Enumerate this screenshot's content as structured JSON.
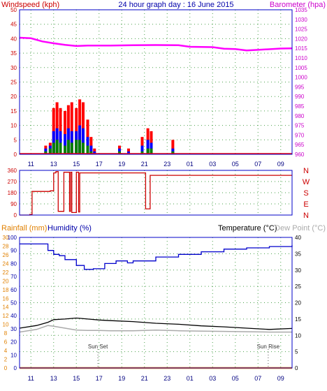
{
  "header": {
    "left_title": "Windspeed (kph)",
    "center_title": "24 hour graph day : 16 June 2015",
    "right_title": "Barometer (hpa)"
  },
  "colors": {
    "frame": "#0000c8",
    "grid": "#4aa04a",
    "wind_axis": "#cc0000",
    "baro_axis": "#cc00cc",
    "rain_axis": "#e08000",
    "humidity_axis": "#0000aa",
    "temp_axis": "#000000",
    "dew_axis": "#aaaaaa",
    "gust": "#ff0000",
    "wind_avg": "#0000ff",
    "wind_low": "#008000",
    "baro": "#ff00ff",
    "direction": "#cc0000",
    "temperature": "#000000",
    "humidity": "#0000cc",
    "dewpoint": "#aaaaaa",
    "rain": "#ff8000"
  },
  "x_ticks": [
    "11",
    "13",
    "15",
    "17",
    "19",
    "21",
    "23",
    "01",
    "03",
    "05",
    "07",
    "09"
  ],
  "chart_data": [
    {
      "type": "bar",
      "title": "24 hour graph day : 16 June 2015",
      "ylabel": "Windspeed (kph)",
      "y2label": "Barometer (hpa)",
      "ylim": [
        0,
        50
      ],
      "y2lim": [
        960,
        1035
      ],
      "y_ticks": [
        "0",
        "5",
        "10",
        "15",
        "20",
        "25",
        "30",
        "35",
        "40",
        "45",
        "50"
      ],
      "y2_ticks": [
        "960",
        "965",
        "970",
        "975",
        "980",
        "985",
        "990",
        "995",
        "1000",
        "1005",
        "1010",
        "1015",
        "1020",
        "1025",
        "1030",
        "1035"
      ],
      "grid": true,
      "x_hours": [
        11.0,
        11.5,
        12.0,
        12.3,
        12.7,
        13.0,
        13.3,
        13.6,
        14.0,
        14.3,
        14.6,
        15.0,
        15.3,
        15.6,
        16.0,
        16.3,
        16.6,
        17.0,
        18.8,
        19.6,
        20.8,
        21.3,
        21.6,
        23.5
      ],
      "series": [
        {
          "name": "gust",
          "values": [
            0,
            0,
            0,
            3,
            4,
            16,
            18,
            16,
            15,
            17,
            18,
            16,
            19,
            18,
            12,
            6,
            2,
            0,
            3,
            2,
            6,
            9,
            8,
            5
          ]
        },
        {
          "name": "average",
          "values": [
            0,
            0,
            0,
            2,
            3,
            8,
            9,
            8,
            7,
            9,
            8,
            8,
            10,
            9,
            6,
            3,
            1,
            0,
            2,
            1,
            3,
            5,
            4,
            2
          ]
        },
        {
          "name": "low",
          "values": [
            0,
            0,
            0,
            1,
            2,
            4,
            5,
            4,
            3,
            5,
            4,
            5,
            5,
            4,
            3,
            1,
            0,
            0,
            1,
            0,
            1,
            2,
            2,
            1
          ]
        },
        {
          "name": "barometer",
          "x": [
            10.0,
            11.0,
            12.0,
            13.0,
            14.0,
            15.0,
            16.0,
            18.0,
            20.0,
            22.0,
            24.0,
            25.0,
            27.0,
            28.0,
            29.0,
            30.0,
            31.0,
            33.0,
            34.0
          ],
          "values": [
            1020.5,
            1020.2,
            1018.6,
            1017.6,
            1016.8,
            1016.2,
            1016.4,
            1016.4,
            1016.6,
            1016.7,
            1016.6,
            1015.8,
            1015.6,
            1014.8,
            1014.6,
            1013.9,
            1014.2,
            1014.9,
            1015.0
          ]
        }
      ]
    },
    {
      "type": "line",
      "ylabel": "Wind direction",
      "ylim": [
        0,
        360
      ],
      "y_ticks": [
        "0",
        "90",
        "180",
        "270",
        "360"
      ],
      "compass_labels": [
        "N",
        "W",
        "S",
        "E",
        "N"
      ],
      "x": [
        10.0,
        10.9,
        11.1,
        12.0,
        12.7,
        13.0,
        13.2,
        13.4,
        13.8,
        13.9,
        14.3,
        14.4,
        14.5,
        14.6,
        14.9,
        15.0,
        15.2,
        15.3,
        17.0,
        21.0,
        21.1,
        21.4,
        21.5,
        22.0,
        25.0,
        34.0
      ],
      "values": [
        0,
        5,
        190,
        190,
        195,
        340,
        350,
        30,
        30,
        345,
        345,
        30,
        345,
        20,
        20,
        345,
        25,
        340,
        340,
        340,
        50,
        50,
        320,
        320,
        320,
        320
      ]
    },
    {
      "type": "line",
      "ylabel_left": "Rainfall (mm)",
      "ylabel_humidity": "Humidity (%)",
      "ylabel_right": "Temperature (°C)",
      "ylabel_dew": "Dew Point (°C)",
      "rain_ticks": [
        "0",
        "2",
        "4",
        "6",
        "8",
        "10",
        "12",
        "14",
        "16",
        "18",
        "20",
        "22",
        "24",
        "26",
        "28",
        "30"
      ],
      "humidity_ticks": [
        "0",
        "10",
        "20",
        "30",
        "40",
        "50",
        "60",
        "70",
        "80",
        "90",
        "100"
      ],
      "temp_ticks": [
        "0",
        "5",
        "10",
        "15",
        "20",
        "25",
        "30",
        "35",
        "40"
      ],
      "annotations": [
        {
          "label": "Sun Set",
          "hour": 16.9
        },
        {
          "label": "Sun Rise",
          "hour": 31.9
        }
      ],
      "grid": true,
      "series": [
        {
          "name": "temperature",
          "x": [
            10.0,
            11.5,
            12.5,
            13.0,
            14.0,
            15.0,
            16.0,
            17.0,
            18.0,
            20.0,
            22.0,
            24.0,
            26.0,
            28.0,
            30.0,
            32.0,
            34.0
          ],
          "values": [
            12.2,
            13.0,
            14.0,
            14.8,
            15.0,
            15.3,
            15.0,
            14.7,
            14.5,
            14.2,
            13.7,
            13.4,
            12.9,
            12.6,
            12.2,
            11.8,
            12.1
          ]
        },
        {
          "name": "humidity",
          "x": [
            10.0,
            11.0,
            12.0,
            12.5,
            13.0,
            13.5,
            14.0,
            15.0,
            15.7,
            16.5,
            17.5,
            18.5,
            19.5,
            20.0,
            22.0,
            24.0,
            26.0,
            28.0,
            30.0,
            32.0,
            34.0
          ],
          "values": [
            95.0,
            95.0,
            95.0,
            90.0,
            87.0,
            86.0,
            83.0,
            78.5,
            75.5,
            76.0,
            80.0,
            82.0,
            80.5,
            82.0,
            85.0,
            87.0,
            89.0,
            91.0,
            92.0,
            93.0,
            94.0
          ]
        },
        {
          "name": "dew point",
          "x": [
            10.0,
            11.5,
            12.5,
            13.0,
            14.0,
            15.0,
            16.0,
            17.0,
            18.0,
            20.0,
            22.0,
            24.0,
            26.0,
            28.0,
            30.0,
            32.0,
            34.0
          ],
          "values": [
            11.0,
            11.8,
            13.0,
            12.8,
            12.2,
            11.6,
            11.5,
            11.5,
            11.4,
            11.4,
            11.6,
            11.4,
            11.3,
            11.2,
            11.1,
            11.0,
            11.0
          ]
        },
        {
          "name": "rainfall",
          "x": [
            10.0,
            34.0
          ],
          "values": [
            0,
            0
          ]
        }
      ]
    }
  ],
  "lower": {
    "rain_label": "Rainfall (mm)",
    "humidity_label": "Humidity (%)",
    "temp_label": "Temperature (°C)",
    "dew_label": "Dew Point (°C)"
  }
}
